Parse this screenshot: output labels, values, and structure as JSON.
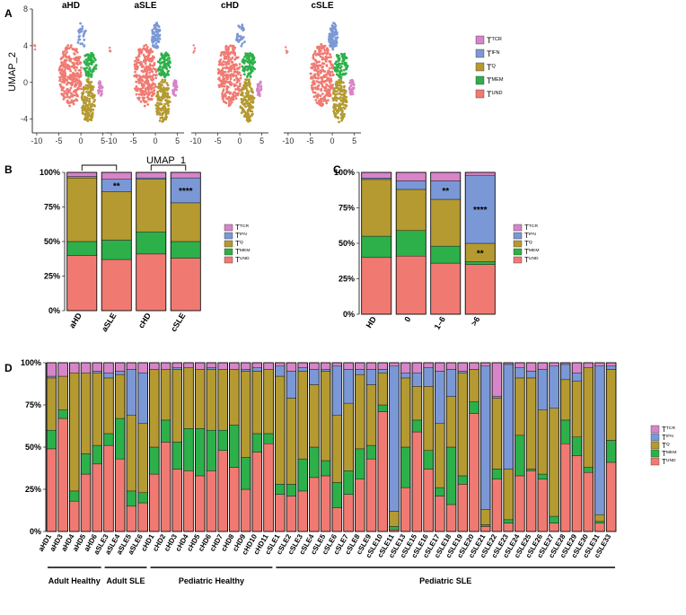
{
  "colors": {
    "TCR": "#d884c8",
    "IFN": "#7b98d6",
    "Q": "#b49a30",
    "MEM": "#2db04a",
    "UND": "#f07a72"
  },
  "subsets": [
    "TCR",
    "IFN",
    "Q",
    "MEM",
    "UND"
  ],
  "chart_data": [
    {
      "panel": "A",
      "type": "scatter",
      "facets": [
        "aHD",
        "aSLE",
        "cHD",
        "cSLE"
      ],
      "xlabel": "UMAP_1",
      "ylabel": "UMAP_2",
      "xticks": [
        "-10",
        "-5",
        "0",
        "5"
      ],
      "yticks": [
        "8",
        "4",
        "0",
        "-4"
      ],
      "xlim": [
        -11,
        6.5
      ],
      "ylim": [
        -5.5,
        8
      ],
      "legend": {
        "position": "right",
        "entries": [
          {
            "key": "TCR",
            "base": "T",
            "sup": "TCR"
          },
          {
            "key": "IFN",
            "base": "T",
            "sup": "IFN"
          },
          {
            "key": "Q",
            "base": "T",
            "sup": "Q"
          },
          {
            "key": "MEM",
            "base": "T",
            "sup": "MEM"
          },
          {
            "key": "UND",
            "base": "T",
            "sup": "UND"
          }
        ]
      }
    },
    {
      "panel": "B",
      "type": "bar",
      "stacked": true,
      "categories": [
        "aHD",
        "aSLE",
        "cHD",
        "cSLE"
      ],
      "yticks": [
        "100%",
        "75%",
        "50%",
        "25%",
        "0%"
      ],
      "ylim": [
        0,
        100
      ],
      "series": [
        {
          "name": "UND",
          "values": [
            40,
            37,
            41,
            38
          ]
        },
        {
          "name": "MEM",
          "values": [
            10,
            14,
            16,
            12
          ]
        },
        {
          "name": "Q",
          "values": [
            46,
            35,
            38,
            28
          ]
        },
        {
          "name": "IFN",
          "values": [
            1,
            9,
            1,
            18
          ]
        },
        {
          "name": "TCR",
          "values": [
            3,
            5,
            4,
            4
          ]
        }
      ],
      "annotations": [
        {
          "category": "aSLE",
          "series": "IFN",
          "text": "**"
        },
        {
          "category": "cSLE",
          "series": "IFN",
          "text": "****"
        }
      ],
      "brackets": [
        [
          "aHD",
          "aSLE"
        ],
        [
          "cHD",
          "cSLE"
        ]
      ],
      "legend": {
        "position": "right",
        "entries": [
          {
            "key": "TCR",
            "base": "T",
            "sup": "TCR"
          },
          {
            "key": "IFN",
            "base": "T",
            "sup": "IFN"
          },
          {
            "key": "Q",
            "base": "T",
            "sup": "Q"
          },
          {
            "key": "MEM",
            "base": "T",
            "sup": "MEM"
          },
          {
            "key": "UND",
            "base": "T",
            "sup": "UND"
          }
        ]
      }
    },
    {
      "panel": "C",
      "type": "bar",
      "stacked": true,
      "categories": [
        "HD",
        "0",
        "1–6",
        ">6"
      ],
      "yticks": [
        "100%",
        "75%",
        "50%",
        "25%",
        "0%"
      ],
      "ylim": [
        0,
        100
      ],
      "series": [
        {
          "name": "UND",
          "values": [
            40,
            41,
            36,
            35
          ]
        },
        {
          "name": "MEM",
          "values": [
            15,
            18,
            12,
            2
          ]
        },
        {
          "name": "Q",
          "values": [
            40,
            29,
            33,
            13
          ]
        },
        {
          "name": "IFN",
          "values": [
            1,
            6,
            13,
            48
          ]
        },
        {
          "name": "TCR",
          "values": [
            4,
            6,
            6,
            2
          ]
        }
      ],
      "annotations": [
        {
          "category": "1–6",
          "series": "IFN",
          "text": "**"
        },
        {
          "category": ">6",
          "series": "IFN",
          "text": "****"
        },
        {
          "category": ">6",
          "series": "Q",
          "text": "**"
        }
      ],
      "legend": {
        "position": "right",
        "entries": [
          {
            "key": "TCR",
            "base": "T",
            "sup": "TCR"
          },
          {
            "key": "IFN",
            "base": "T",
            "sup": "IFN"
          },
          {
            "key": "Q",
            "base": "T",
            "sup": "Q"
          },
          {
            "key": "MEM",
            "base": "T",
            "sup": "MEM"
          },
          {
            "key": "UND",
            "base": "T",
            "sup": "UND"
          }
        ]
      }
    },
    {
      "panel": "D",
      "type": "bar",
      "stacked": true,
      "categories": [
        "aHD1",
        "aHD3",
        "aHD4",
        "aHD5",
        "aHD6",
        "aSLE3",
        "aSLE4",
        "aSLE5",
        "aSLE6",
        "cHD1",
        "cHD2",
        "cHD3",
        "cHD4",
        "cHD5",
        "cHD6",
        "cHD7",
        "cHD8",
        "cHD9",
        "cHD10",
        "cHD11",
        "cSLE1",
        "cSLE2",
        "cSLE3",
        "cSLE4",
        "cSLE5",
        "cSLE6",
        "cSLE7",
        "cSLE8",
        "cSLE9",
        "cSLE10",
        "cSLE11",
        "cSLE13",
        "cSLE15",
        "cSLE16",
        "cSLE17",
        "cSLE18",
        "cSLE19",
        "cSLE20",
        "cSLE21",
        "cSLE22",
        "cSLE23",
        "cSLE24",
        "cSLE25",
        "cSLE26",
        "cSLE27",
        "cSLE28",
        "cSLE29",
        "cSLE30",
        "cSLE31",
        "cSLE33"
      ],
      "yticks": [
        "100%",
        "75%",
        "50%",
        "25%",
        "0%"
      ],
      "ylim": [
        0,
        100
      ],
      "series": [
        {
          "name": "UND",
          "values": [
            49,
            67,
            18,
            34,
            40,
            51,
            43,
            15,
            17,
            34,
            53,
            37,
            36,
            33,
            36,
            48,
            38,
            25,
            47,
            52,
            22,
            21,
            24,
            32,
            33,
            14,
            22,
            31,
            43,
            71,
            1,
            26,
            59,
            37,
            21,
            16,
            28,
            70,
            3,
            31,
            5,
            33,
            36,
            31,
            5,
            52,
            45,
            35,
            5,
            41
          ]
        },
        {
          "name": "MEM",
          "values": [
            11,
            5,
            6,
            12,
            11,
            7,
            24,
            9,
            6,
            16,
            13,
            16,
            25,
            28,
            24,
            12,
            25,
            19,
            11,
            6,
            6,
            7,
            19,
            18,
            9,
            15,
            14,
            18,
            8,
            4,
            2,
            24,
            7,
            11,
            5,
            34,
            5,
            7,
            1,
            6,
            2,
            24,
            1,
            3,
            4,
            14,
            11,
            3,
            1,
            13
          ]
        },
        {
          "name": "Q",
          "values": [
            31,
            20,
            70,
            48,
            43,
            33,
            26,
            45,
            41,
            46,
            30,
            43,
            36,
            35,
            36,
            36,
            33,
            51,
            37,
            38,
            64,
            51,
            52,
            37,
            53,
            40,
            40,
            44,
            36,
            19,
            9,
            41,
            20,
            38,
            38,
            30,
            61,
            19,
            9,
            42,
            30,
            34,
            54,
            38,
            64,
            24,
            33,
            59,
            4,
            42
          ]
        },
        {
          "name": "IFN",
          "values": [
            1,
            0,
            0,
            0,
            1,
            3,
            2,
            27,
            30,
            0,
            0,
            1,
            0,
            0,
            1,
            0,
            0,
            1,
            2,
            0,
            6,
            16,
            2,
            9,
            1,
            29,
            20,
            3,
            9,
            2,
            86,
            3,
            8,
            11,
            31,
            16,
            1,
            0,
            85,
            1,
            62,
            6,
            4,
            24,
            25,
            9,
            5,
            0,
            88,
            2
          ]
        },
        {
          "name": "TCR",
          "values": [
            8,
            8,
            6,
            6,
            5,
            6,
            5,
            4,
            6,
            4,
            4,
            3,
            3,
            4,
            3,
            4,
            4,
            4,
            3,
            4,
            2,
            5,
            3,
            4,
            4,
            2,
            4,
            4,
            4,
            4,
            2,
            6,
            6,
            3,
            5,
            4,
            5,
            4,
            2,
            20,
            1,
            3,
            5,
            4,
            2,
            1,
            6,
            3,
            2,
            2
          ]
        }
      ],
      "groups": [
        {
          "label": "Adult Healthy",
          "from": 0,
          "to": 4
        },
        {
          "label": "Adult SLE",
          "from": 5,
          "to": 8
        },
        {
          "label": "Pediatric Healthy",
          "from": 9,
          "to": 19
        },
        {
          "label": "Pediatric SLE",
          "from": 20,
          "to": 49
        }
      ],
      "legend": {
        "position": "right",
        "entries": [
          {
            "key": "TCR",
            "base": "T",
            "sup": "TCR"
          },
          {
            "key": "IFN",
            "base": "T",
            "sup": "IFN"
          },
          {
            "key": "Q",
            "base": "T",
            "sup": "Q"
          },
          {
            "key": "MEM",
            "base": "T",
            "sup": "MEM"
          },
          {
            "key": "UND",
            "base": "T",
            "sup": "UND"
          }
        ]
      }
    }
  ]
}
